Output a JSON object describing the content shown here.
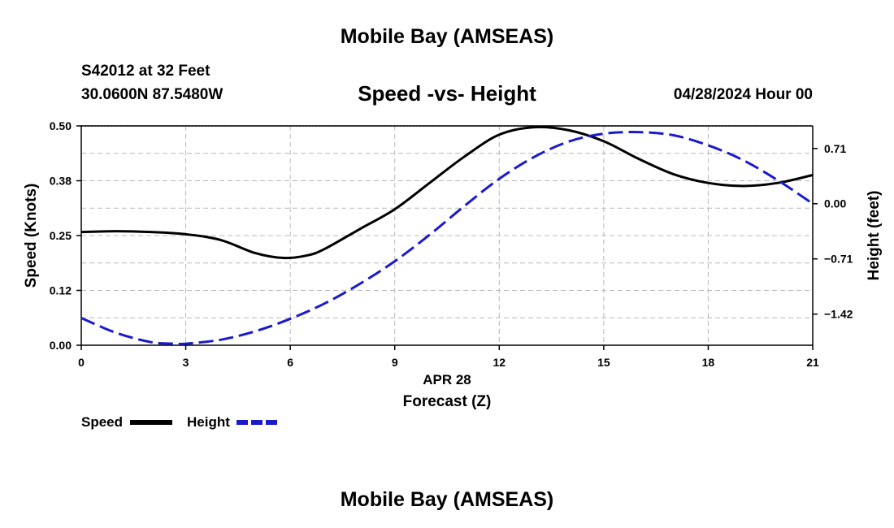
{
  "header": {
    "title": "Mobile Bay (AMSEAS)",
    "station": "S42012 at 32 Feet",
    "coords": "30.0600N  87.5480W",
    "datetime": "04/28/2024 Hour 00"
  },
  "footer": {
    "title": "Mobile Bay (AMSEAS)"
  },
  "colors": {
    "speed": "#000000",
    "height": "#1a1acc",
    "grid": "#b8b8b8"
  },
  "chart_data": {
    "type": "line",
    "title": "Speed -vs- Height",
    "xlabel": "Forecast (Z)",
    "xdate_label": "APR 28",
    "ylabel": "Speed (Knots)",
    "y2label": "Height (feet)",
    "xlim": [
      0,
      21
    ],
    "ylim": [
      0,
      0.5
    ],
    "y2lim": [
      -1.82,
      1.0
    ],
    "x_ticks": [
      0,
      3,
      6,
      9,
      12,
      15,
      18,
      21
    ],
    "x_tick_labels": [
      "0",
      "3",
      "6",
      "9",
      "12",
      "15",
      "18",
      "21"
    ],
    "y_ticks": [
      0,
      0.125,
      0.25,
      0.375,
      0.5
    ],
    "y_tick_labels": [
      "0.00",
      "0.12",
      "0.25",
      "0.38",
      "0.50"
    ],
    "y2_ticks": [
      0.71,
      0.0,
      -0.71,
      -1.42
    ],
    "y2_tick_labels": [
      "0.71",
      "0.00",
      "−0.71",
      "−1.42"
    ],
    "grid": true,
    "legend": {
      "position": "bottom-left",
      "entries": [
        "Speed",
        "Height"
      ]
    },
    "series": [
      {
        "name": "Speed",
        "axis": "left",
        "style": "solid",
        "x": [
          0,
          1,
          2,
          3,
          4,
          5,
          5.8,
          6.5,
          7,
          8,
          9,
          10,
          11,
          12,
          13,
          14,
          15,
          16,
          17,
          18,
          19,
          20,
          21
        ],
        "values": [
          0.258,
          0.26,
          0.258,
          0.253,
          0.24,
          0.21,
          0.199,
          0.205,
          0.22,
          0.265,
          0.31,
          0.37,
          0.43,
          0.48,
          0.497,
          0.49,
          0.465,
          0.425,
          0.39,
          0.37,
          0.363,
          0.37,
          0.388
        ]
      },
      {
        "name": "Height",
        "axis": "right",
        "style": "dashed",
        "x": [
          0,
          1,
          2,
          2.7,
          3,
          4,
          5,
          6,
          7,
          8,
          9,
          10,
          11,
          12,
          13,
          14,
          15,
          16,
          17,
          18,
          19,
          20,
          21
        ],
        "values": [
          -1.47,
          -1.66,
          -1.78,
          -1.8,
          -1.8,
          -1.75,
          -1.64,
          -1.48,
          -1.28,
          -1.03,
          -0.74,
          -0.4,
          -0.03,
          0.32,
          0.6,
          0.8,
          0.9,
          0.92,
          0.88,
          0.75,
          0.56,
          0.3,
          0.0
        ]
      }
    ]
  }
}
